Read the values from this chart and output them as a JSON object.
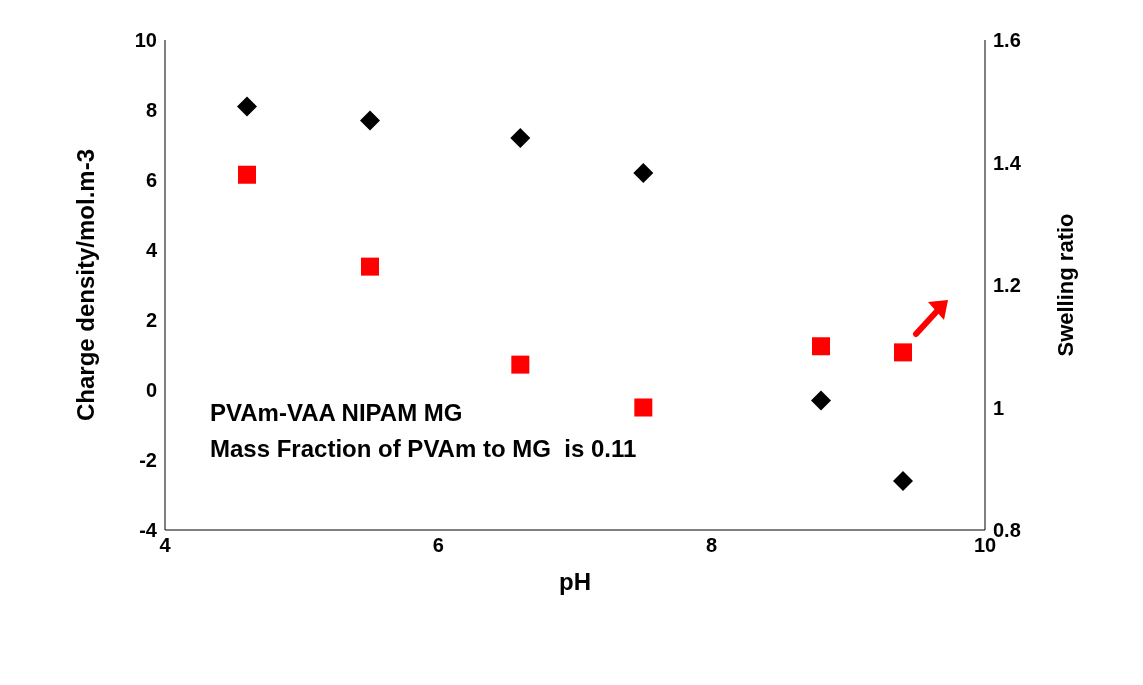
{
  "chart_data": {
    "type": "scatter",
    "xlabel": "pH",
    "ylabel": "Charge density/mol.m-3",
    "y2label": "Swelling ratio",
    "series": [
      {
        "color": "#000000",
        "marker": "diamond",
        "x": [
          4.6,
          5.5,
          6.6,
          7.5,
          8.8,
          9.4
        ],
        "values": [
          8.1,
          7.7,
          7.2,
          6.2,
          -0.3,
          -2.6
        ]
      },
      {
        "color": "#ff0000",
        "marker": "square",
        "axis": "y2",
        "x": [
          4.6,
          5.5,
          6.6,
          7.5,
          8.8,
          9.4
        ],
        "values": [
          1.38,
          1.23,
          1.07,
          1.0,
          1.1,
          1.09
        ]
      }
    ],
    "xlim": [
      4,
      10
    ],
    "xticks": [
      4,
      6,
      8,
      10
    ],
    "ylim": [
      -4,
      10
    ],
    "yticks": [
      -4,
      -2,
      0,
      2,
      4,
      6,
      8,
      10
    ],
    "y2lim": [
      0.8,
      1.6
    ],
    "y2ticks": [
      0.8,
      1,
      1.2,
      1.4,
      1.6
    ],
    "annotations": [
      "PVAm-VAA NIPAM MG",
      "Mass Fraction of PVAm to MG  is 0.11"
    ],
    "grid": false,
    "legend": false
  }
}
